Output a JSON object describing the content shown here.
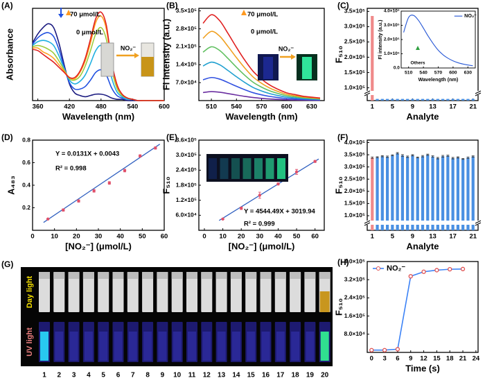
{
  "chart_data": [
    {
      "type": "line",
      "label": "(A)",
      "xlabel": "Wavelength (nm)",
      "ylabel": "Absorbance",
      "smooth": true,
      "x": [
        350,
        360,
        370,
        380,
        390,
        400,
        410,
        420,
        430,
        440,
        450,
        460,
        470,
        480,
        490,
        500,
        510,
        520,
        530,
        540,
        550,
        560,
        570,
        580,
        590,
        600
      ],
      "series": [
        {
          "color": "#1a1a80",
          "values": [
            0.45,
            0.52,
            0.57,
            0.6,
            0.57,
            0.45,
            0.28,
            0.13,
            0.06,
            0.04,
            0.03,
            0.04,
            0.05,
            0.05,
            0.04,
            0.02,
            0.01,
            0.01,
            0,
            0,
            0,
            0,
            0,
            0,
            0,
            0
          ]
        },
        {
          "color": "#2050e0",
          "values": [
            0.44,
            0.49,
            0.52,
            0.53,
            0.5,
            0.4,
            0.26,
            0.14,
            0.09,
            0.09,
            0.11,
            0.16,
            0.22,
            0.24,
            0.2,
            0.1,
            0.04,
            0.02,
            0.01,
            0.01,
            0,
            0,
            0,
            0,
            0,
            0
          ]
        },
        {
          "color": "#20b0e0",
          "values": [
            0.43,
            0.46,
            0.47,
            0.46,
            0.43,
            0.35,
            0.25,
            0.16,
            0.13,
            0.15,
            0.2,
            0.29,
            0.39,
            0.43,
            0.36,
            0.18,
            0.07,
            0.03,
            0.01,
            0.01,
            0,
            0,
            0,
            0,
            0,
            0
          ]
        },
        {
          "color": "#9ccc3c",
          "values": [
            0.42,
            0.43,
            0.42,
            0.4,
            0.37,
            0.31,
            0.24,
            0.17,
            0.16,
            0.19,
            0.27,
            0.39,
            0.52,
            0.57,
            0.48,
            0.25,
            0.1,
            0.04,
            0.02,
            0.01,
            0,
            0,
            0,
            0,
            0,
            0
          ]
        },
        {
          "color": "#ffa020",
          "values": [
            0.41,
            0.41,
            0.38,
            0.36,
            0.33,
            0.28,
            0.23,
            0.18,
            0.17,
            0.22,
            0.31,
            0.45,
            0.61,
            0.66,
            0.56,
            0.29,
            0.12,
            0.05,
            0.02,
            0.01,
            0,
            0,
            0,
            0,
            0,
            0
          ]
        },
        {
          "color": "#e02020",
          "values": [
            0.4,
            0.39,
            0.36,
            0.33,
            0.3,
            0.26,
            0.22,
            0.18,
            0.18,
            0.23,
            0.33,
            0.48,
            0.64,
            0.69,
            0.59,
            0.31,
            0.13,
            0.05,
            0.02,
            0.01,
            0,
            0,
            0,
            0,
            0,
            0
          ]
        }
      ],
      "xlim": [
        350,
        600
      ],
      "xticks": [
        360,
        420,
        480,
        540,
        600
      ],
      "ylim": [
        0,
        0.72
      ],
      "annotations": [
        "70 μmol/L",
        "0 μmol/L",
        "NO₂⁻"
      ]
    },
    {
      "type": "line",
      "label": "(B)",
      "xlabel": "Wavelength (nm)",
      "ylabel": "Fl intensity (a.u.)",
      "smooth": true,
      "x": [
        500,
        510,
        520,
        530,
        540,
        550,
        560,
        570,
        580,
        590,
        600,
        610,
        620,
        630,
        640
      ],
      "series": [
        {
          "color": "#6a2ea0",
          "values": [
            31500,
            35000,
            32550,
            27300,
            21700,
            16450,
            11900,
            8750,
            6300,
            4550,
            3150,
            2450,
            1750,
            1400,
            1050
          ]
        },
        {
          "color": "#3050e0",
          "values": [
            81000,
            90000,
            83700,
            70200,
            55800,
            42300,
            30600,
            22500,
            16200,
            11700,
            8100,
            6300,
            4500,
            3600,
            2700
          ]
        },
        {
          "color": "#20a0d0",
          "values": [
            135000,
            150000,
            139500,
            117000,
            93000,
            70500,
            51000,
            37500,
            27000,
            19500,
            13500,
            10500,
            7500,
            6000,
            4500
          ]
        },
        {
          "color": "#60c060",
          "values": [
            189000,
            210000,
            195300,
            163800,
            130200,
            98700,
            71400,
            52500,
            37800,
            27300,
            18900,
            14700,
            10500,
            8400,
            6300
          ]
        },
        {
          "color": "#f0a020",
          "values": [
            243000,
            270000,
            251100,
            210600,
            167400,
            126900,
            91800,
            67500,
            48600,
            35100,
            24300,
            18900,
            13500,
            10800,
            8100
          ]
        },
        {
          "color": "#e02020",
          "values": [
            301500,
            335000,
            311550,
            261300,
            207700,
            157450,
            113900,
            83750,
            60300,
            43550,
            30150,
            23450,
            16750,
            13400,
            10050
          ]
        }
      ],
      "xlim": [
        495,
        645
      ],
      "xticks": [
        510,
        540,
        570,
        600,
        630
      ],
      "ylim": [
        0,
        360000
      ],
      "yticks": [
        {
          "value": 70000,
          "label": "7.0×10⁴"
        },
        {
          "value": 140000,
          "label": "1.4×10⁵"
        },
        {
          "value": 210000,
          "label": "2.1×10⁵"
        },
        {
          "value": 280000,
          "label": "2.8×10⁵"
        },
        {
          "value": 350000,
          "label": "3.5×10⁵"
        }
      ],
      "annotations": [
        "70 μmol/L",
        "0 μmol/L",
        "NO₂⁻"
      ]
    },
    {
      "type": "bar",
      "label": "(C)",
      "xlabel": "Analyte",
      "ylabel": "F₅₁₀",
      "x": [
        1,
        2,
        3,
        4,
        5,
        6,
        7,
        8,
        9,
        10,
        11,
        12,
        13,
        14,
        15,
        16,
        17,
        18,
        19,
        20,
        21
      ],
      "values": [
        335000,
        3000,
        3000,
        3000,
        3000,
        3000,
        3000,
        3000,
        3000,
        3000,
        3000,
        3000,
        3000,
        3000,
        3000,
        3000,
        3000,
        3000,
        3000,
        3000,
        3000
      ],
      "colors": [
        "#f08a8a",
        "#4a90e2",
        "#4a90e2",
        "#4a90e2",
        "#4a90e2",
        "#4a90e2",
        "#4a90e2",
        "#4a90e2",
        "#4a90e2",
        "#4a90e2",
        "#4a90e2",
        "#4a90e2",
        "#4a90e2",
        "#4a90e2",
        "#4a90e2",
        "#4a90e2",
        "#4a90e2",
        "#4a90e2",
        "#4a90e2",
        "#4a90e2",
        "#4a90e2"
      ],
      "xlim": [
        0,
        22
      ],
      "xticks": [
        1,
        5,
        9,
        13,
        17,
        21
      ],
      "ylim": [
        0,
        360000
      ],
      "ybreak": [
        10000,
        90000
      ],
      "yticks": [
        {
          "value": 100000,
          "label": "1.0×10⁵"
        },
        {
          "value": 150000,
          "label": "1.5×10⁵"
        },
        {
          "value": 200000,
          "label": "2.0×10⁵"
        },
        {
          "value": 250000,
          "label": "2.5×10⁵"
        },
        {
          "value": 300000,
          "label": "3.0×10⁵"
        },
        {
          "value": 350000,
          "label": "3.5×10⁵"
        }
      ]
    },
    {
      "type": "line",
      "xlabel": "Wavelength (nm)",
      "ylabel": "Fl intensity (a.u.)",
      "smooth": true,
      "legend": "upper right",
      "x": [
        500,
        510,
        520,
        530,
        540,
        550,
        560,
        570,
        580,
        590,
        600,
        610,
        620,
        630,
        640
      ],
      "series": [
        {
          "name": "NO₂⁻",
          "color": "#2a5ad6",
          "values": [
            250000,
            355000,
            370000,
            335000,
            280000,
            222000,
            170000,
            125000,
            92000,
            68000,
            50000,
            37000,
            28000,
            21000,
            16000
          ]
        }
      ],
      "xlim": [
        495,
        645
      ],
      "xticks": [
        510,
        540,
        570,
        600,
        630
      ],
      "ylim": [
        0,
        400000
      ],
      "yticks": [
        {
          "value": 0,
          "label": "0.0"
        },
        {
          "value": 100000,
          "label": "1.0×10⁵"
        },
        {
          "value": 200000,
          "label": "2.0×10⁵"
        },
        {
          "value": 300000,
          "label": "3.0×10⁵"
        },
        {
          "value": 400000,
          "label": "4.0×10⁵"
        }
      ],
      "annotations": [
        "Others"
      ]
    },
    {
      "type": "scatter",
      "label": "(D)",
      "xlabel": "[NO₂⁻] (μmol/L)",
      "ylabel": "A₄₈₃",
      "color": "#e0506a",
      "fit_color": "#3060c0",
      "x": [
        7,
        14,
        21,
        28,
        35,
        42,
        49,
        56
      ],
      "values": [
        0.1,
        0.18,
        0.26,
        0.35,
        0.42,
        0.53,
        0.66,
        0.73
      ],
      "errors": [
        0.005,
        0.01,
        0.01,
        0.012,
        0.012,
        0.012,
        0.01,
        0.01
      ],
      "fit": {
        "slope": 0.0131,
        "intercept": 0.0043
      },
      "xlim": [
        0,
        60
      ],
      "xticks": [
        0,
        10,
        20,
        30,
        40,
        50,
        60
      ],
      "ylim": [
        0,
        0.8
      ],
      "yticks": [
        0.2,
        0.4,
        0.6,
        0.8
      ],
      "annotations": [
        "Y = 0.0131X + 0.0043",
        "R² = 0.998"
      ]
    },
    {
      "type": "scatter",
      "label": "(E)",
      "xlabel": "[NO₂⁻] (μmol/L)",
      "ylabel": "F₅₁₀",
      "color": "#e0506a",
      "fit_color": "#3060c0",
      "x": [
        10,
        20,
        30,
        40,
        50,
        60
      ],
      "values": [
        45000,
        88000,
        140000,
        185000,
        233000,
        275000
      ],
      "errors": [
        2000,
        5000,
        12000,
        4000,
        10000,
        4000
      ],
      "fit": {
        "slope": 4544.49,
        "intercept": 3019.94
      },
      "xlim": [
        -3,
        65
      ],
      "xticks": [
        0,
        10,
        20,
        30,
        40,
        50,
        60
      ],
      "ylim": [
        0,
        360000
      ],
      "yticks": [
        {
          "value": 60000,
          "label": "6.0×10⁴"
        },
        {
          "value": 120000,
          "label": "1.2×10⁵"
        },
        {
          "value": 180000,
          "label": "1.8×10⁵"
        },
        {
          "value": 240000,
          "label": "2.4×10⁵"
        },
        {
          "value": 300000,
          "label": "3.0×10⁵"
        },
        {
          "value": 360000,
          "label": "3.6×10⁵"
        }
      ],
      "annotations": [
        "Y = 4544.49X + 3019.94",
        "R² = 0.999"
      ]
    },
    {
      "type": "bar",
      "label": "(F)",
      "xlabel": "Analyte",
      "ylabel": "F₅₁₀",
      "x": [
        1,
        2,
        3,
        4,
        5,
        6,
        7,
        8,
        9,
        10,
        11,
        12,
        13,
        14,
        15,
        16,
        17,
        18,
        19,
        20,
        21
      ],
      "values": [
        338000,
        340000,
        344000,
        342000,
        348000,
        356000,
        347000,
        342000,
        348000,
        339000,
        344000,
        350000,
        343000,
        336000,
        344000,
        346000,
        336000,
        339000,
        333000,
        338000,
        343000
      ],
      "errors": [
        3000,
        2000,
        2500,
        3000,
        2000,
        3000,
        3500,
        3000,
        2500,
        2000,
        3000,
        2500,
        3000,
        3000,
        3500,
        2500,
        3000,
        2500,
        2000,
        3000,
        2500
      ],
      "colors": [
        "#f08a8a",
        "#4a90e2",
        "#4a90e2",
        "#4a90e2",
        "#4a90e2",
        "#4a90e2",
        "#4a90e2",
        "#4a90e2",
        "#4a90e2",
        "#4a90e2",
        "#4a90e2",
        "#4a90e2",
        "#4a90e2",
        "#4a90e2",
        "#4a90e2",
        "#4a90e2",
        "#4a90e2",
        "#4a90e2",
        "#4a90e2",
        "#4a90e2",
        "#4a90e2"
      ],
      "xlim": [
        0,
        22
      ],
      "xticks": [
        1,
        5,
        9,
        13,
        17,
        21
      ],
      "ylim": [
        0,
        410000
      ],
      "ybreak": [
        15000,
        80000
      ],
      "yticks": [
        {
          "value": 100000,
          "label": "1.0×10⁵"
        },
        {
          "value": 150000,
          "label": "1.5×10⁵"
        },
        {
          "value": 200000,
          "label": "2.0×10⁵"
        },
        {
          "value": 250000,
          "label": "2.5×10⁵"
        },
        {
          "value": 300000,
          "label": "3.0×10⁵"
        },
        {
          "value": 350000,
          "label": "3.5×10⁵"
        },
        {
          "value": 400000,
          "label": "4.0×10⁵"
        }
      ]
    },
    {
      "type": "line",
      "label": "(H)",
      "xlabel": "Time (s)",
      "ylabel": "F₅₁₀",
      "markers": true,
      "legend": "upper left",
      "x": [
        0,
        3,
        6,
        9,
        12,
        15,
        18,
        21
      ],
      "series": [
        {
          "name": "NO₂⁻",
          "color": "#3b82f6",
          "marker_color": "#e05050",
          "values": [
            10000,
            10000,
            14000,
            335000,
            355000,
            362000,
            366000,
            367000
          ]
        }
      ],
      "xlim": [
        -1,
        24.5
      ],
      "xticks": [
        0,
        3,
        6,
        9,
        12,
        15,
        18,
        21,
        24
      ],
      "ylim": [
        0,
        400000
      ],
      "yticks": [
        {
          "value": 80000,
          "label": "8.0×10⁴"
        },
        {
          "value": 160000,
          "label": "1.6×10⁵"
        },
        {
          "value": 240000,
          "label": "2.4×10⁵"
        },
        {
          "value": 320000,
          "label": "3.2×10⁵"
        },
        {
          "value": 400000,
          "label": "4.0×10⁵"
        }
      ]
    }
  ],
  "photo": {
    "label": "(G)",
    "rows": [
      "Day light",
      "UV light"
    ],
    "vial_labels": [
      "1",
      "2",
      "3",
      "4",
      "5",
      "6",
      "7",
      "8",
      "9",
      "10",
      "11",
      "12",
      "13",
      "14",
      "15",
      "16",
      "17",
      "18",
      "19",
      "20"
    ]
  }
}
